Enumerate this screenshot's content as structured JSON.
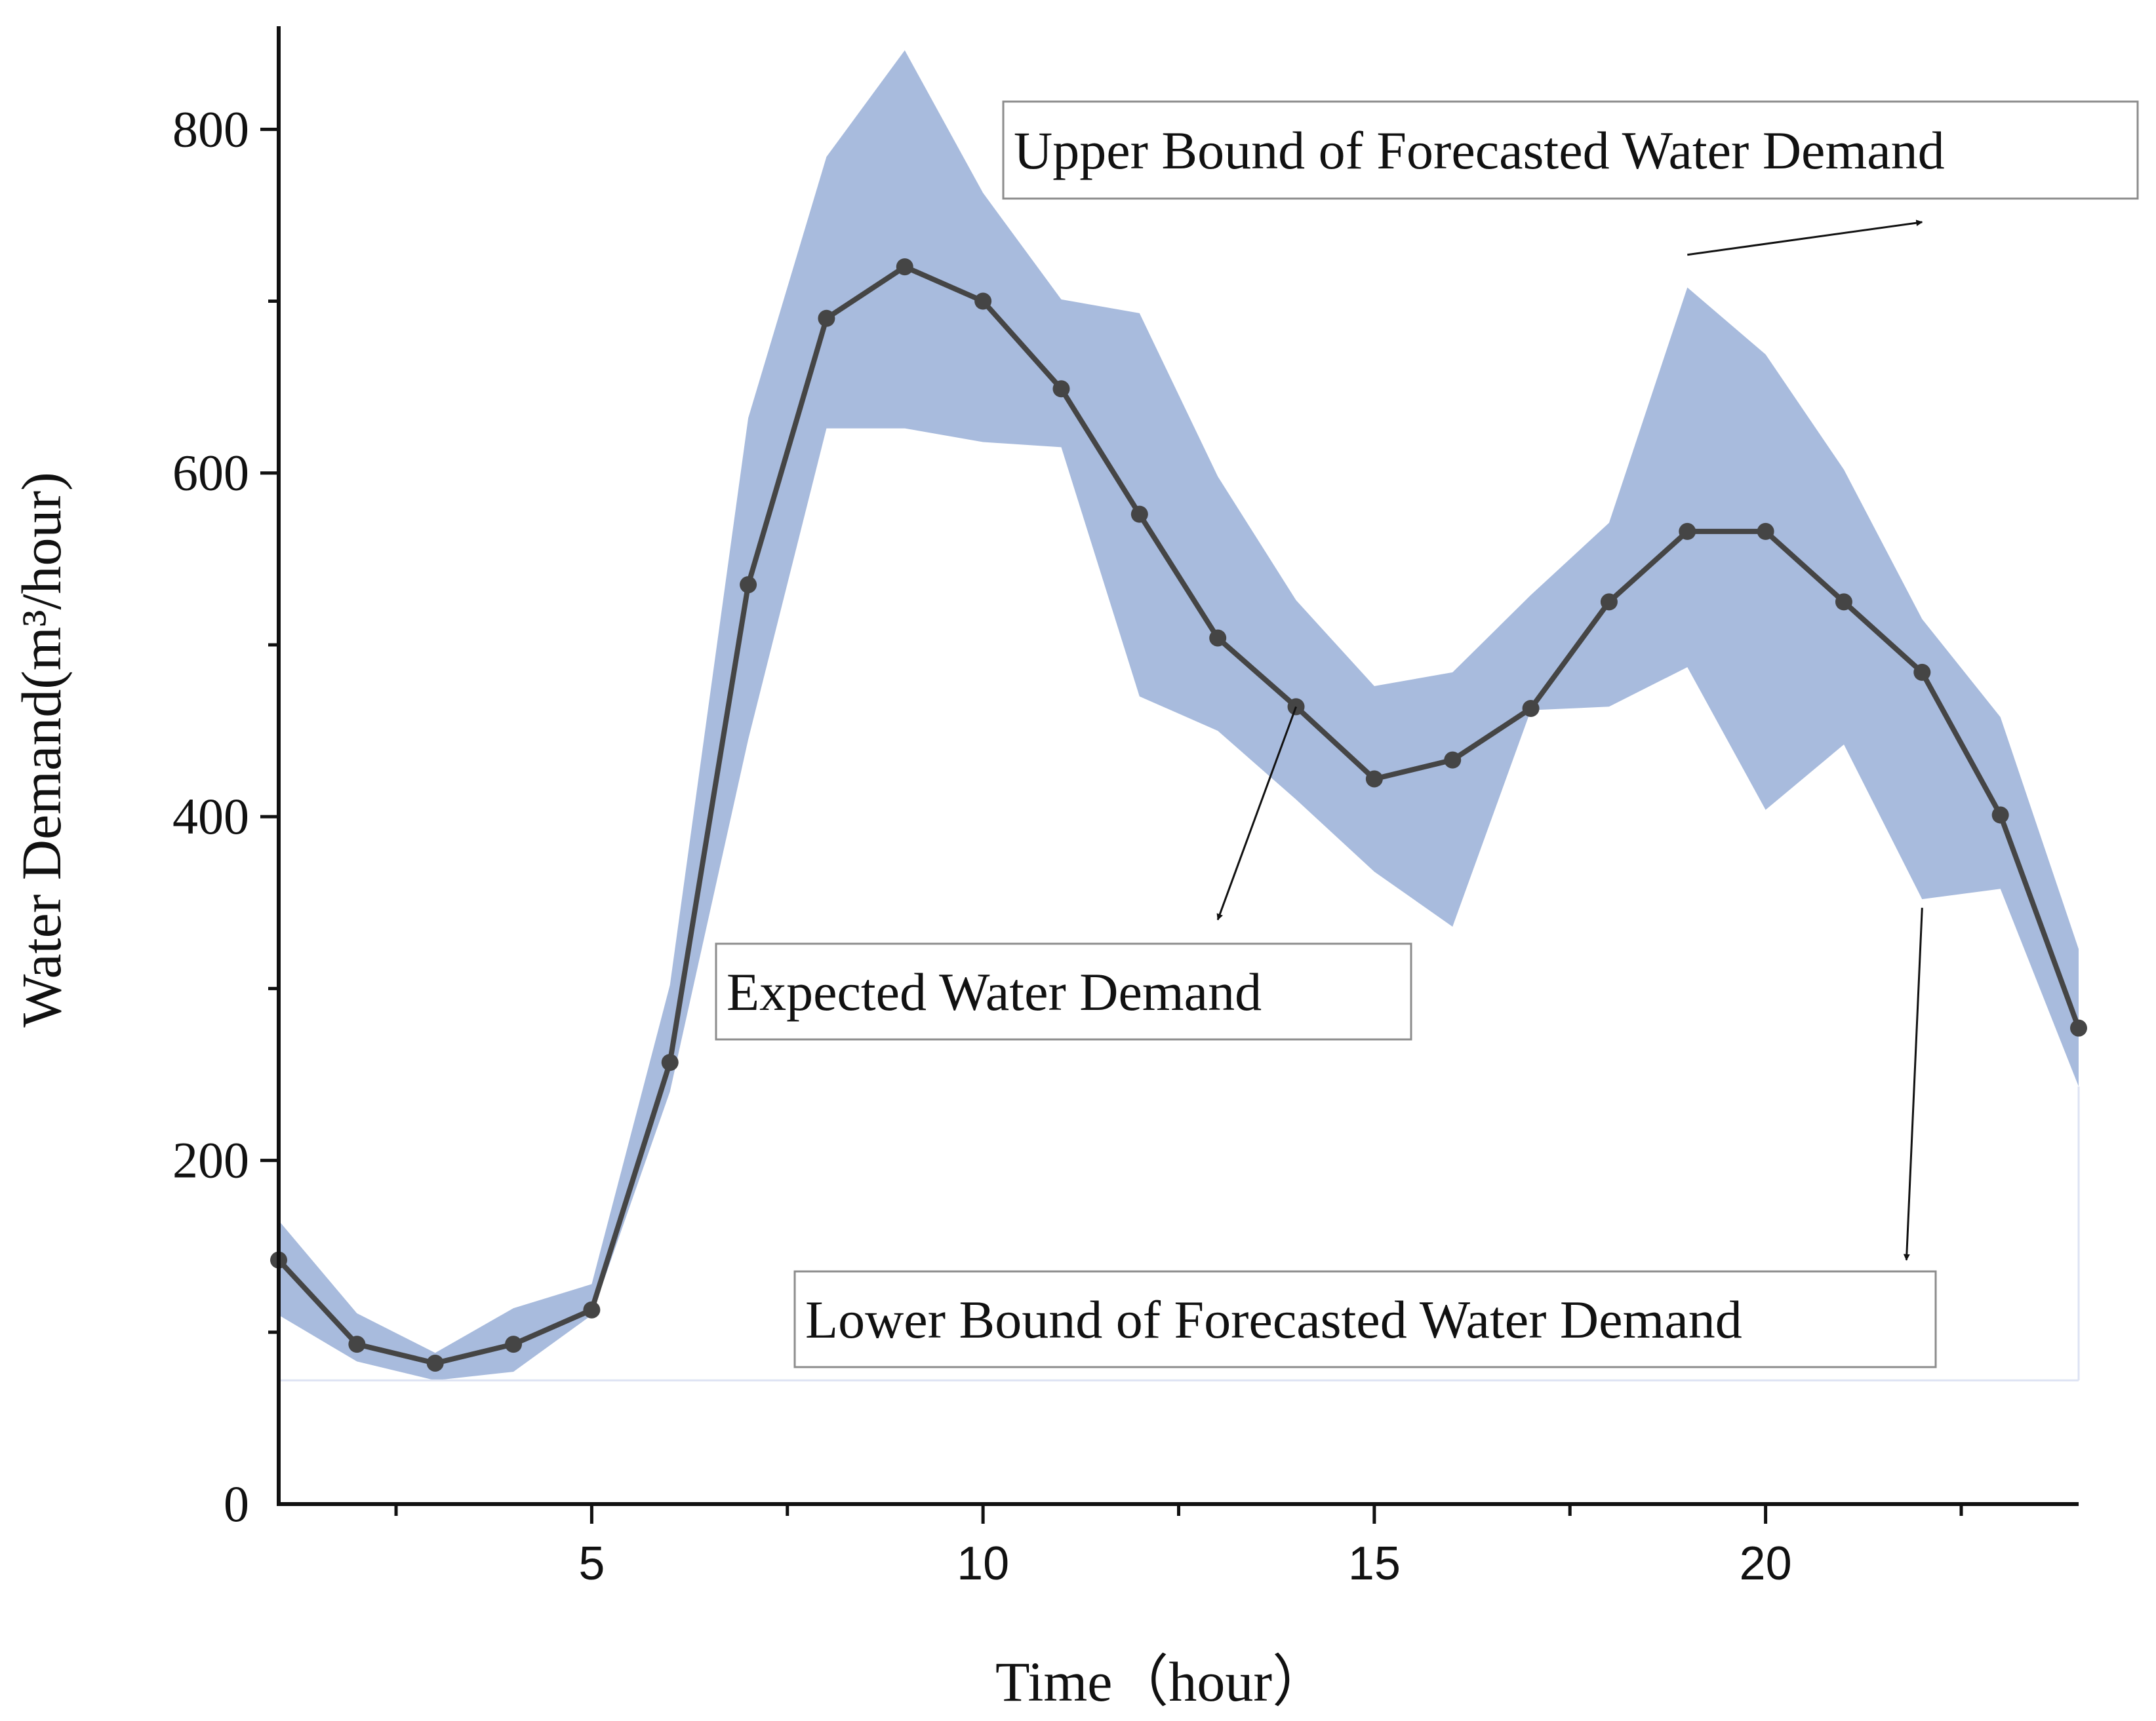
{
  "chart_data": {
    "type": "line",
    "xlabel": "Time（hour）",
    "ylabel": "Water Demand(m³/hour)",
    "xlim": [
      1,
      24
    ],
    "ylim": [
      0,
      860
    ],
    "xticks": [
      5,
      10,
      15,
      20
    ],
    "yticks": [
      0,
      200,
      400,
      600,
      800
    ],
    "x_minor_step": 2.5,
    "y_minor_step": 100,
    "grid": false,
    "colors": {
      "band": "#a8bbdd",
      "line": "#454545",
      "axis": "#111111"
    },
    "x": [
      1,
      2,
      3,
      4,
      5,
      6,
      7,
      8,
      9,
      10,
      11,
      12,
      13,
      14,
      15,
      16,
      17,
      18,
      19,
      20,
      21,
      22,
      23,
      24
    ],
    "series": [
      {
        "values": [
          142,
          93,
          82,
          93,
          113,
          257,
          535,
          690,
          720,
          700,
          649,
          576,
          504,
          464,
          422,
          433,
          463,
          525,
          566,
          566,
          525,
          484,
          401,
          277
        ]
      }
    ],
    "band": {
      "upper": [
        165,
        111,
        88,
        114,
        128,
        302,
        632,
        784,
        846,
        763,
        701,
        693,
        598,
        526,
        476,
        484,
        529,
        571,
        708,
        669,
        602,
        515,
        458,
        323
      ],
      "lower": [
        110,
        83,
        72,
        77,
        110,
        240,
        445,
        626,
        626,
        618,
        615,
        470,
        450,
        410,
        368,
        336,
        462,
        464,
        487,
        404,
        442,
        352,
        358,
        243
      ],
      "floor": 72
    },
    "annotations": [
      {
        "text": "Upper Bound of Forecasted Water Demand",
        "arrow_from": [
          19.0,
          727
        ],
        "arrow_to": [
          22.0,
          746
        ]
      },
      {
        "text": "Expected Water Demand",
        "arrow_from": [
          14.0,
          464
        ],
        "arrow_to": [
          13.0,
          340
        ]
      },
      {
        "text": "Lower Bound of Forecasted Water Demand",
        "arrow_from": [
          22.0,
          347
        ],
        "arrow_to": [
          21.8,
          142
        ]
      }
    ]
  }
}
